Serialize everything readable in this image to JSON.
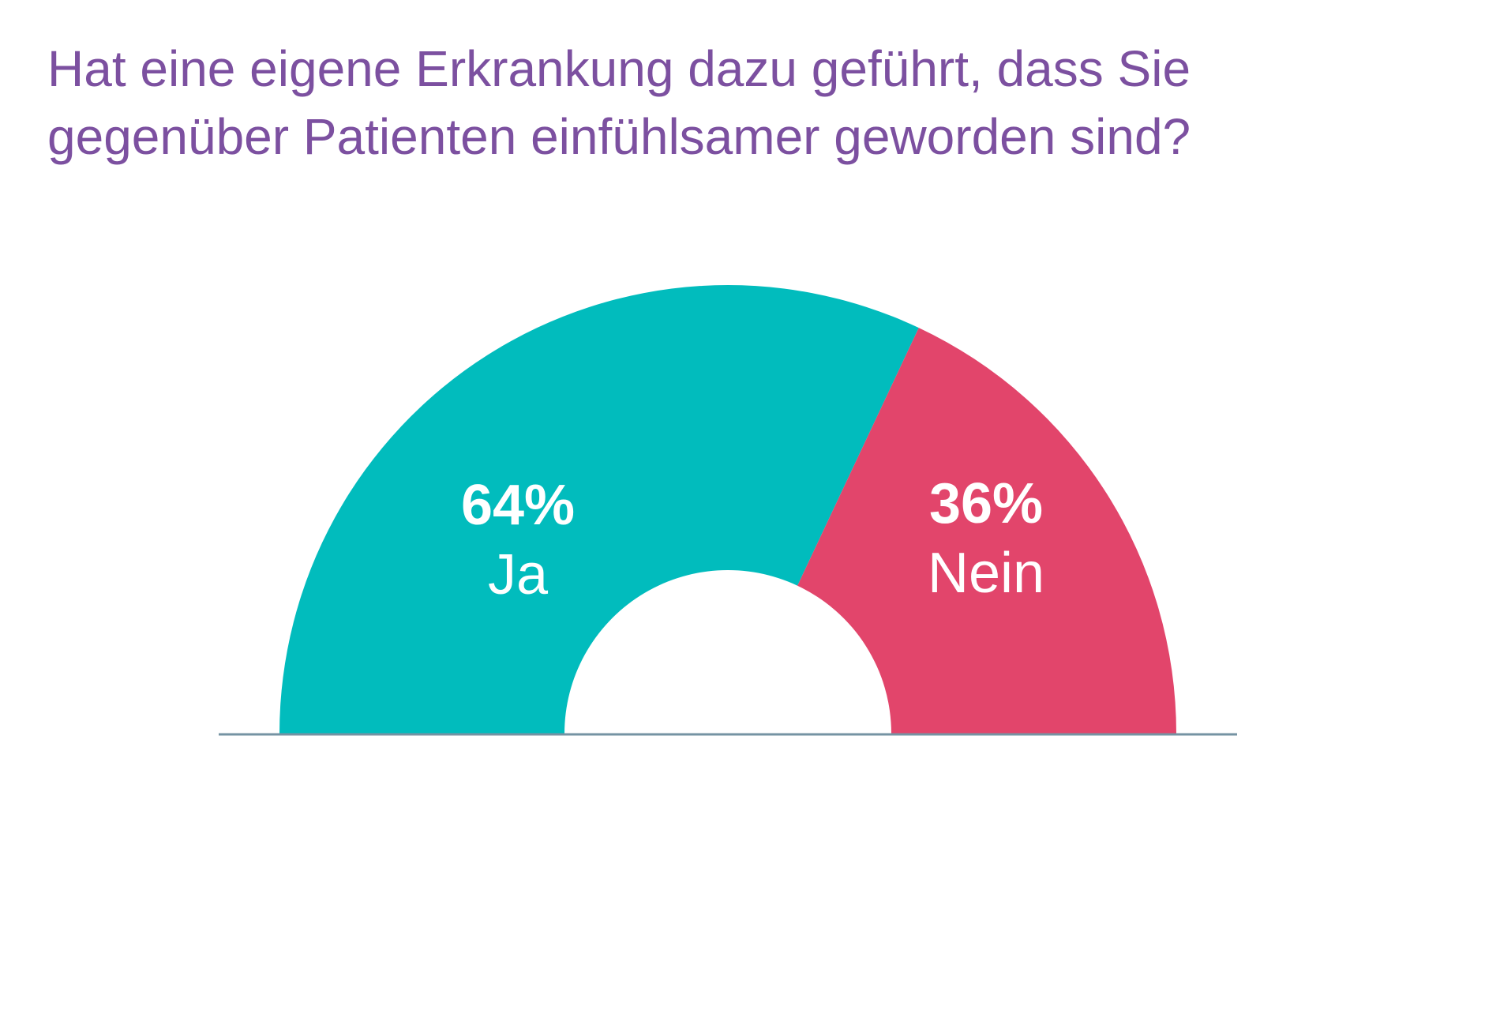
{
  "title": {
    "line1": "Hat eine eigene Erkrankung dazu geführt, dass Sie",
    "line2": "gegenüber Patienten einfühlsamer geworden sind?"
  },
  "chart_data": {
    "type": "pie",
    "subtype": "half-donut-gauge",
    "title": "Hat eine eigene Erkrankung dazu geführt, dass Sie gegenüber Patienten einfühlsamer geworden sind?",
    "categories": [
      "Ja",
      "Nein"
    ],
    "values": [
      64,
      36
    ],
    "unit": "%",
    "colors": [
      "#01BCBD",
      "#E2456B"
    ],
    "labels": [
      {
        "percent": "64%",
        "name": "Ja"
      },
      {
        "percent": "36%",
        "name": "Nein"
      }
    ],
    "label_color": "#FFFFFF",
    "start_angle_deg": 180,
    "end_angle_deg": 0,
    "inner_radius_ratio": 0.365,
    "legend": "none",
    "grid": "off",
    "baseline_axis": {
      "visible": true,
      "color": "#7593A3"
    }
  },
  "colors": {
    "background": "#FFFFFF",
    "title_text": "#7C50A0",
    "segment_ja": "#01BCBD",
    "segment_nein": "#E2456B",
    "label_text": "#FFFFFF",
    "baseline": "#7593A3"
  }
}
